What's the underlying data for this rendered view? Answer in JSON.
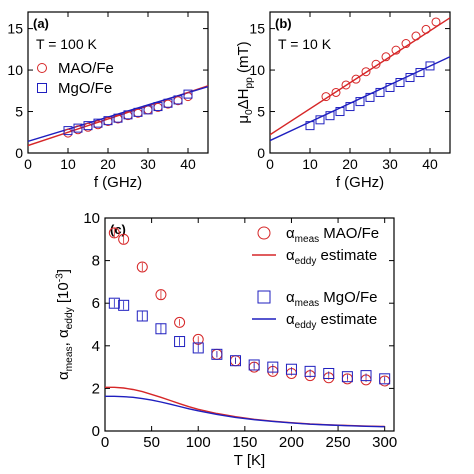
{
  "figure": {
    "panels": [
      {
        "id": "a",
        "panel_label": "(a)",
        "annotation": "T = 100 K",
        "xlabel": "f (GHz)",
        "ylabel": "",
        "xlim": [
          0,
          45
        ],
        "ylim": [
          0,
          17
        ],
        "xticks": [
          0,
          10,
          20,
          30,
          40
        ],
        "yticks": [
          0,
          5,
          10,
          15
        ],
        "legend": [
          {
            "marker": "circle",
            "color": "#d62728",
            "label": "MAO/Fe"
          },
          {
            "marker": "square",
            "color": "#1f1fbf",
            "label": "MgO/Fe"
          }
        ],
        "chart_data": {
          "type": "scatter",
          "series": [
            {
              "name": "MAO/Fe",
              "marker": "circle",
              "color": "#d62728",
              "x": [
                10,
                12.5,
                15,
                17.5,
                20,
                22.5,
                25,
                27.5,
                30,
                32.5,
                35,
                37.5,
                40
              ],
              "y": [
                2.4,
                2.8,
                3.1,
                3.4,
                3.8,
                4.1,
                4.5,
                4.8,
                5.2,
                5.5,
                5.9,
                6.3,
                6.8
              ]
            },
            {
              "name": "MgO/Fe",
              "marker": "square",
              "color": "#1f1fbf",
              "x": [
                10,
                12.5,
                15,
                17.5,
                20,
                22.5,
                25,
                27.5,
                30,
                32.5,
                35,
                37.5,
                40
              ],
              "y": [
                2.7,
                3.0,
                3.3,
                3.6,
                3.9,
                4.2,
                4.6,
                4.9,
                5.2,
                5.6,
                6.0,
                6.4,
                7.1
              ]
            }
          ],
          "fits": [
            {
              "name": "MAO/Fe",
              "color": "#d62728",
              "x": [
                0,
                45
              ],
              "y": [
                0.9,
                8.1
              ]
            },
            {
              "name": "MgO/Fe",
              "color": "#1f1fbf",
              "x": [
                0,
                45
              ],
              "y": [
                1.4,
                8.0
              ]
            }
          ]
        }
      },
      {
        "id": "b",
        "panel_label": "(b)",
        "annotation": "T = 10 K",
        "xlabel": "f (GHz)",
        "ylabel_parts": [
          "μ",
          "0",
          "ΔH",
          "pp",
          " (mT)"
        ],
        "xlim": [
          0,
          45
        ],
        "ylim": [
          0,
          17
        ],
        "xticks": [
          0,
          10,
          20,
          30,
          40
        ],
        "yticks": [
          0,
          5,
          10,
          15
        ],
        "chart_data": {
          "type": "scatter",
          "series": [
            {
              "name": "MAO/Fe",
              "marker": "circle",
              "color": "#d62728",
              "x": [
                14,
                16.5,
                19,
                21.5,
                24,
                26.5,
                29,
                31.5,
                34,
                36.5,
                39,
                41.5
              ],
              "y": [
                6.8,
                7.3,
                8.2,
                8.9,
                9.8,
                10.7,
                11.6,
                12.4,
                13.2,
                14.1,
                14.9,
                15.8
              ]
            },
            {
              "name": "MgO/Fe",
              "marker": "square",
              "color": "#1f1fbf",
              "x": [
                10,
                12.5,
                15,
                17.5,
                20,
                22.5,
                25,
                27.5,
                30,
                32.5,
                35,
                37.5,
                40
              ],
              "y": [
                3.3,
                4.0,
                4.5,
                5.0,
                5.6,
                6.2,
                6.7,
                7.3,
                7.9,
                8.5,
                9.1,
                9.7,
                10.5
              ]
            }
          ],
          "fits": [
            {
              "name": "MAO/Fe",
              "color": "#d62728",
              "x": [
                0,
                45
              ],
              "y": [
                2.2,
                16.3
              ]
            },
            {
              "name": "MgO/Fe",
              "color": "#1f1fbf",
              "x": [
                0,
                45
              ],
              "y": [
                1.5,
                11.6
              ]
            }
          ]
        }
      },
      {
        "id": "c",
        "panel_label": "(c)",
        "xlabel": "T [K]",
        "ylabel_parts": [
          "α",
          "meas",
          ", α",
          "eddy",
          " [10",
          "-3",
          "]"
        ],
        "xlim": [
          0,
          310
        ],
        "ylim": [
          0,
          10
        ],
        "xticks": [
          0,
          50,
          100,
          150,
          200,
          250,
          300
        ],
        "yticks": [
          0,
          2,
          4,
          6,
          8,
          10
        ],
        "legend": [
          {
            "marker": "circle",
            "color": "#d62728",
            "sym": "α",
            "sub": "meas",
            "label": "MAO/Fe"
          },
          {
            "marker": "line",
            "color": "#d62728",
            "sym": "α",
            "sub": "eddy",
            "label": "estimate"
          },
          {
            "marker": "square",
            "color": "#1f1fbf",
            "sym": "α",
            "sub": "meas",
            "label": "MgO/Fe"
          },
          {
            "marker": "line",
            "color": "#1f1fbf",
            "sym": "α",
            "sub": "eddy",
            "label": "estimate"
          }
        ],
        "chart_data": {
          "type": "scatter",
          "series": [
            {
              "name": "α_meas MAO/Fe",
              "marker": "circle",
              "color": "#d62728",
              "x": [
                10,
                20,
                40,
                60,
                80,
                100,
                120,
                140,
                160,
                180,
                200,
                220,
                240,
                260,
                280,
                300
              ],
              "y": [
                9.3,
                9.0,
                7.7,
                6.4,
                5.1,
                4.3,
                3.6,
                3.3,
                3.0,
                2.8,
                2.7,
                2.6,
                2.5,
                2.45,
                2.4,
                2.35
              ],
              "err": [
                0.25,
                0.2,
                0.2,
                0.2,
                0.15,
                0.15,
                0.15,
                0.15,
                0.15,
                0.15,
                0.1,
                0.1,
                0.1,
                0.1,
                0.1,
                0.1
              ]
            },
            {
              "name": "α_meas MgO/Fe",
              "marker": "square",
              "color": "#1f1fbf",
              "x": [
                10,
                20,
                40,
                60,
                80,
                100,
                120,
                140,
                160,
                180,
                200,
                220,
                240,
                260,
                280,
                300
              ],
              "y": [
                6.0,
                5.9,
                5.4,
                4.8,
                4.2,
                3.9,
                3.6,
                3.3,
                3.1,
                3.0,
                2.9,
                2.8,
                2.7,
                2.55,
                2.6,
                2.45
              ],
              "err": [
                0.2,
                0.2,
                0.25,
                0.25,
                0.2,
                0.2,
                0.15,
                0.15,
                0.15,
                0.15,
                0.1,
                0.1,
                0.1,
                0.1,
                0.1,
                0.1
              ]
            }
          ],
          "curves": [
            {
              "name": "α_eddy estimate MAO/Fe",
              "color": "#d62728",
              "x": [
                0,
                10,
                20,
                30,
                40,
                50,
                60,
                70,
                80,
                90,
                100,
                120,
                140,
                160,
                180,
                200,
                220,
                240,
                260,
                280,
                300
              ],
              "y": [
                2.05,
                2.05,
                2.02,
                1.95,
                1.85,
                1.72,
                1.58,
                1.43,
                1.28,
                1.14,
                1.02,
                0.82,
                0.67,
                0.55,
                0.46,
                0.39,
                0.33,
                0.29,
                0.26,
                0.23,
                0.21
              ]
            },
            {
              "name": "α_eddy estimate MgO/Fe",
              "color": "#1f1fbf",
              "x": [
                0,
                10,
                20,
                30,
                40,
                50,
                60,
                70,
                80,
                90,
                100,
                120,
                140,
                160,
                180,
                200,
                220,
                240,
                260,
                280,
                300
              ],
              "y": [
                1.63,
                1.63,
                1.61,
                1.58,
                1.52,
                1.45,
                1.36,
                1.26,
                1.15,
                1.04,
                0.95,
                0.78,
                0.64,
                0.53,
                0.45,
                0.38,
                0.32,
                0.28,
                0.25,
                0.22,
                0.2
              ]
            }
          ]
        }
      }
    ]
  }
}
